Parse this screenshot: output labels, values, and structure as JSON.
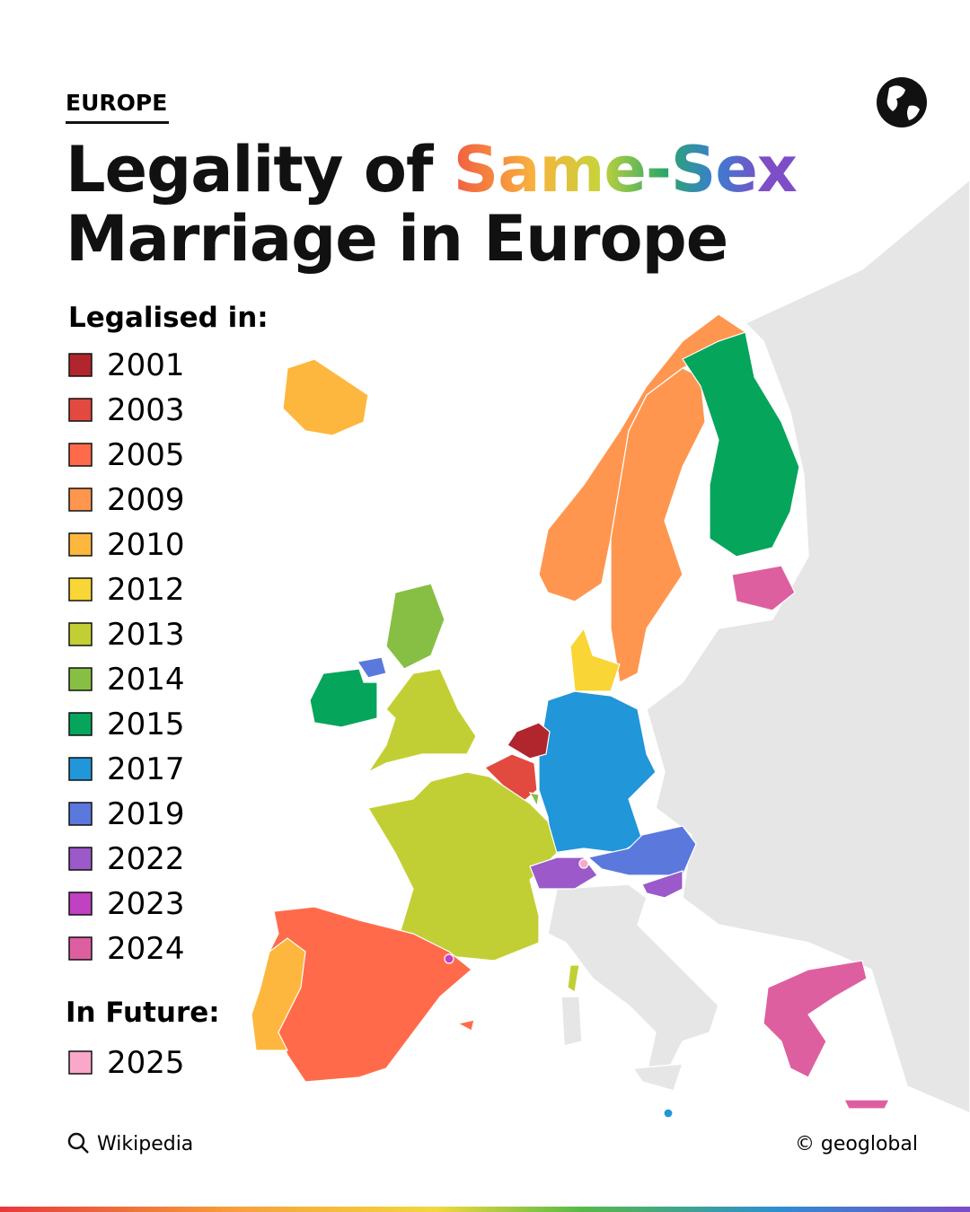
{
  "header": {
    "kicker": "EUROPE",
    "title_start": "Legality of ",
    "title_highlight": "Same-Sex",
    "title_end": "Marriage in Europe"
  },
  "legend": {
    "title": "Legalised in:",
    "items": [
      {
        "label": "2001",
        "color": "#b0262c"
      },
      {
        "label": "2003",
        "color": "#e24a3f"
      },
      {
        "label": "2005",
        "color": "#ff6b4a"
      },
      {
        "label": "2009",
        "color": "#ff9650"
      },
      {
        "label": "2010",
        "color": "#fdb73e"
      },
      {
        "label": "2012",
        "color": "#f9d535"
      },
      {
        "label": "2013",
        "color": "#c2cf34"
      },
      {
        "label": "2014",
        "color": "#87bf45"
      },
      {
        "label": "2015",
        "color": "#06a55c"
      },
      {
        "label": "2017",
        "color": "#2196d8"
      },
      {
        "label": "2019",
        "color": "#5b78dc"
      },
      {
        "label": "2022",
        "color": "#9b59c9"
      },
      {
        "label": "2023",
        "color": "#c041c1"
      },
      {
        "label": "2024",
        "color": "#de5fa0"
      }
    ]
  },
  "future": {
    "title": "In Future:",
    "items": [
      {
        "label": "2025",
        "color": "#f9a8c9"
      }
    ]
  },
  "footer": {
    "source": "Wikipedia",
    "credit": "© geoglobal"
  }
}
